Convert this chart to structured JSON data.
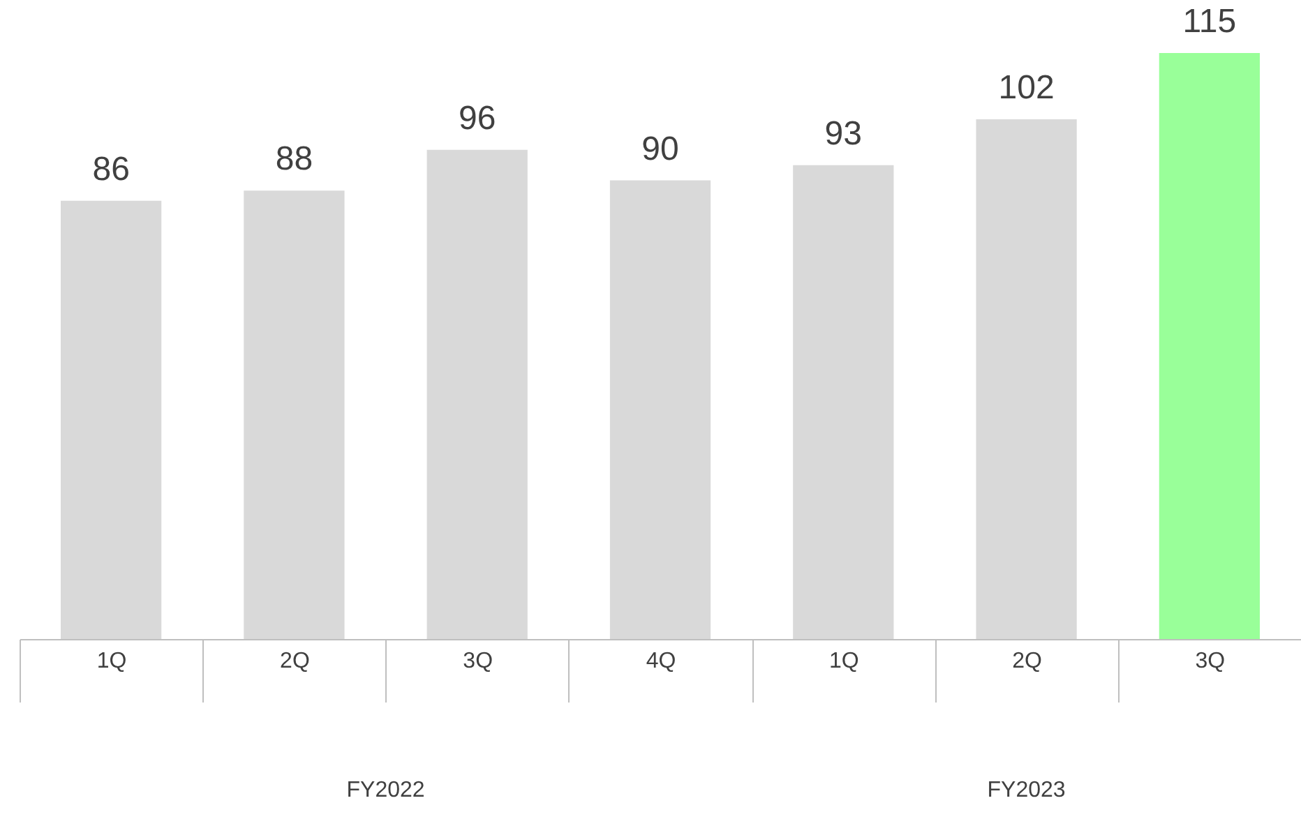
{
  "chart_data": {
    "type": "bar",
    "categories": [
      "1Q",
      "2Q",
      "3Q",
      "4Q",
      "1Q",
      "2Q",
      "3Q"
    ],
    "values": [
      86,
      88,
      96,
      90,
      93,
      102,
      115
    ],
    "colors": [
      "#d9d9d9",
      "#d9d9d9",
      "#d9d9d9",
      "#d9d9d9",
      "#d9d9d9",
      "#d9d9d9",
      "#99ff99"
    ],
    "data_labels": true,
    "annotations": [
      "FY2022",
      "FY2023"
    ]
  }
}
